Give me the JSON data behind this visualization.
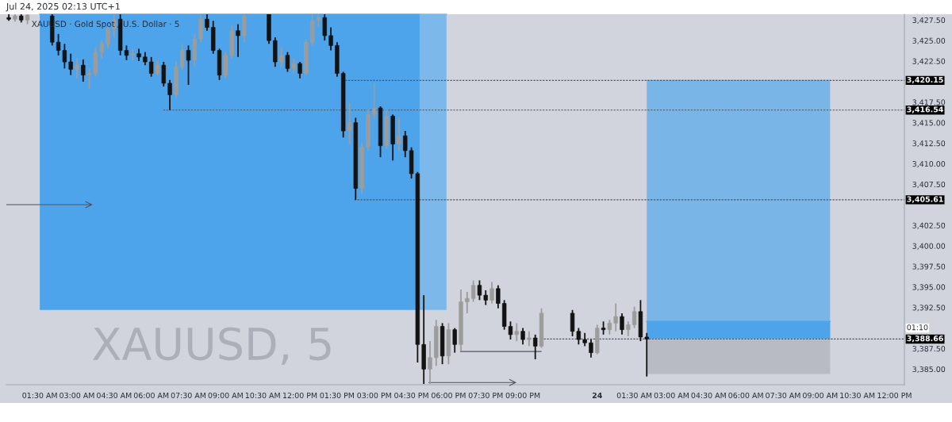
{
  "chart_data": {
    "type": "candlestick",
    "title": "XAUUSD · Gold Spot / U.S. Dollar · 5",
    "subtitle": "XAUUSD, 5",
    "annotations": [
      "Jul 24, 2025 02:13 UTC+1",
      "01:10"
    ],
    "x": [
      "2025-07-23T00:15",
      "2025-07-23T00:30",
      "2025-07-23T00:45",
      "2025-07-23T01:00",
      "2025-07-23T02:00",
      "2025-07-23T02:15",
      "2025-07-23T02:30",
      "2025-07-23T02:45",
      "2025-07-23T03:00",
      "2025-07-23T03:15",
      "2025-07-23T03:30",
      "2025-07-23T03:45",
      "2025-07-23T04:00",
      "2025-07-23T04:15",
      "2025-07-23T04:30",
      "2025-07-23T04:45",
      "2025-07-23T05:00",
      "2025-07-23T05:15",
      "2025-07-23T05:30",
      "2025-07-23T05:45",
      "2025-07-23T06:00",
      "2025-07-23T06:15",
      "2025-07-23T06:30",
      "2025-07-23T06:45",
      "2025-07-23T07:00",
      "2025-07-23T07:15",
      "2025-07-23T07:30",
      "2025-07-23T07:45",
      "2025-07-23T08:00",
      "2025-07-23T08:15",
      "2025-07-23T08:30",
      "2025-07-23T08:45",
      "2025-07-23T09:00",
      "2025-07-23T09:15",
      "2025-07-23T09:30",
      "2025-07-23T09:45",
      "2025-07-23T10:45",
      "2025-07-23T11:00",
      "2025-07-23T11:15",
      "2025-07-23T11:30",
      "2025-07-23T11:45",
      "2025-07-23T12:00",
      "2025-07-23T12:15",
      "2025-07-23T12:30",
      "2025-07-23T12:45",
      "2025-07-23T13:00",
      "2025-07-23T13:15",
      "2025-07-23T13:30",
      "2025-07-23T13:45",
      "2025-07-23T14:00",
      "2025-07-23T14:15",
      "2025-07-23T14:30",
      "2025-07-23T14:45",
      "2025-07-23T15:00",
      "2025-07-23T15:15",
      "2025-07-23T15:30",
      "2025-07-23T15:45",
      "2025-07-23T16:00",
      "2025-07-23T16:15",
      "2025-07-23T16:30",
      "2025-07-23T16:45",
      "2025-07-23T17:00",
      "2025-07-23T17:15",
      "2025-07-23T17:30",
      "2025-07-23T17:45",
      "2025-07-23T18:00",
      "2025-07-23T18:15",
      "2025-07-23T18:30",
      "2025-07-23T18:45",
      "2025-07-23T19:00",
      "2025-07-23T19:15",
      "2025-07-23T19:30",
      "2025-07-23T19:45",
      "2025-07-23T20:00",
      "2025-07-23T20:15",
      "2025-07-23T20:30",
      "2025-07-23T20:45",
      "2025-07-23T21:00",
      "2025-07-23T21:15",
      "2025-07-23T21:30",
      "2025-07-23T21:45",
      "2025-07-23T23:00",
      "2025-07-23T23:15",
      "2025-07-23T23:30",
      "2025-07-23T23:45",
      "2025-07-24T00:00",
      "2025-07-24T00:15",
      "2025-07-24T00:30",
      "2025-07-24T00:45",
      "2025-07-24T01:00",
      "2025-07-24T01:15",
      "2025-07-24T01:30",
      "2025-07-24T01:45",
      "2025-07-24T02:00"
    ],
    "ohlc": [
      [
        3427.8,
        3428.2,
        3427.4,
        3427.6
      ],
      [
        3427.6,
        3428.2,
        3427.3,
        3428.0
      ],
      [
        3428.0,
        3428.2,
        3427.2,
        3427.5
      ],
      [
        3427.5,
        3428.2,
        3427.0,
        3428.1
      ],
      [
        3428.0,
        3428.2,
        3424.4,
        3424.8
      ],
      [
        3424.8,
        3425.8,
        3423.2,
        3423.8
      ],
      [
        3423.8,
        3424.6,
        3421.6,
        3422.4
      ],
      [
        3422.4,
        3423.4,
        3420.8,
        3421.5
      ],
      [
        3421.5,
        3422.9,
        3420.4,
        3422.0
      ],
      [
        3422.0,
        3422.7,
        3420.0,
        3420.8
      ],
      [
        3420.8,
        3421.6,
        3419.1,
        3421.0
      ],
      [
        3421.0,
        3424.2,
        3420.6,
        3423.6
      ],
      [
        3423.6,
        3425.0,
        3422.8,
        3424.6
      ],
      [
        3424.6,
        3426.8,
        3424.0,
        3426.4
      ],
      [
        3426.4,
        3428.2,
        3425.4,
        3427.6
      ],
      [
        3427.6,
        3428.2,
        3423.2,
        3423.8
      ],
      [
        3423.8,
        3424.4,
        3422.6,
        3423.2
      ],
      [
        3423.2,
        3424.0,
        3422.6,
        3423.4
      ],
      [
        3423.4,
        3424.0,
        3422.5,
        3423.0
      ],
      [
        3423.0,
        3423.6,
        3422.0,
        3422.4
      ],
      [
        3422.4,
        3423.0,
        3420.6,
        3421.0
      ],
      [
        3421.0,
        3422.6,
        3420.8,
        3422.0
      ],
      [
        3422.0,
        3422.4,
        3419.4,
        3419.8
      ],
      [
        3419.8,
        3420.2,
        3416.54,
        3418.4
      ],
      [
        3418.4,
        3422.4,
        3418.0,
        3421.8
      ],
      [
        3421.8,
        3424.6,
        3421.4,
        3423.8
      ],
      [
        3423.8,
        3424.4,
        3419.6,
        3422.6
      ],
      [
        3422.6,
        3425.8,
        3421.8,
        3425.2
      ],
      [
        3425.2,
        3428.2,
        3424.8,
        3427.6
      ],
      [
        3427.6,
        3428.2,
        3426.2,
        3426.6
      ],
      [
        3426.6,
        3427.4,
        3423.4,
        3423.8
      ],
      [
        3423.8,
        3424.0,
        3420.2,
        3420.8
      ],
      [
        3420.8,
        3423.6,
        3420.4,
        3423.2
      ],
      [
        3423.2,
        3426.8,
        3422.8,
        3426.2
      ],
      [
        3426.2,
        3427.0,
        3423.0,
        3425.6
      ],
      [
        3425.6,
        3428.2,
        3424.8,
        3428.0
      ],
      [
        3428.2,
        3428.2,
        3424.6,
        3425.0
      ],
      [
        3425.0,
        3425.4,
        3421.8,
        3422.4
      ],
      [
        3422.4,
        3424.2,
        3421.8,
        3423.2
      ],
      [
        3423.2,
        3423.6,
        3421.2,
        3421.6
      ],
      [
        3421.6,
        3422.8,
        3421.0,
        3422.2
      ],
      [
        3422.2,
        3422.4,
        3420.4,
        3421.0
      ],
      [
        3421.0,
        3425.2,
        3420.8,
        3424.8
      ],
      [
        3424.8,
        3428.2,
        3424.4,
        3427.4
      ],
      [
        3427.4,
        3428.2,
        3426.6,
        3427.8
      ],
      [
        3427.8,
        3428.2,
        3425.0,
        3425.6
      ],
      [
        3425.6,
        3426.6,
        3423.8,
        3424.4
      ],
      [
        3424.4,
        3424.8,
        3420.6,
        3421.0
      ],
      [
        3421.0,
        3421.2,
        3413.2,
        3414.0
      ],
      [
        3414.0,
        3417.4,
        3412.4,
        3415.0
      ],
      [
        3415.0,
        3415.6,
        3405.61,
        3407.0
      ],
      [
        3407.0,
        3412.6,
        3406.4,
        3412.0
      ],
      [
        3412.0,
        3416.6,
        3411.6,
        3416.0
      ],
      [
        3416.0,
        3419.8,
        3415.4,
        3416.8
      ],
      [
        3416.8,
        3417.0,
        3410.8,
        3412.2
      ],
      [
        3412.2,
        3416.6,
        3411.8,
        3415.8
      ],
      [
        3415.8,
        3416.0,
        3410.4,
        3412.4
      ],
      [
        3412.4,
        3415.7,
        3411.6,
        3413.4
      ],
      [
        3413.4,
        3414.0,
        3410.8,
        3411.6
      ],
      [
        3411.6,
        3412.0,
        3408.2,
        3408.8
      ],
      [
        3408.8,
        3409.0,
        3385.8,
        3388.0
      ],
      [
        3388.0,
        3394.0,
        3383.2,
        3385.0
      ],
      [
        3385.0,
        3388.4,
        3383.2,
        3386.4
      ],
      [
        3386.4,
        3391.0,
        3385.4,
        3390.2
      ],
      [
        3390.2,
        3390.6,
        3385.6,
        3386.6
      ],
      [
        3386.6,
        3390.6,
        3385.6,
        3389.8
      ],
      [
        3389.8,
        3390.0,
        3387.0,
        3388.0
      ],
      [
        3388.0,
        3394.7,
        3387.2,
        3393.2
      ],
      [
        3393.2,
        3394.4,
        3391.8,
        3393.6
      ],
      [
        3393.6,
        3395.8,
        3393.2,
        3395.2
      ],
      [
        3395.2,
        3395.8,
        3393.4,
        3394.0
      ],
      [
        3394.0,
        3394.6,
        3392.8,
        3393.4
      ],
      [
        3393.4,
        3395.6,
        3393.0,
        3394.8
      ],
      [
        3394.8,
        3395.2,
        3392.4,
        3393.0
      ],
      [
        3393.0,
        3393.4,
        3389.8,
        3390.2
      ],
      [
        3390.2,
        3390.8,
        3388.6,
        3389.2
      ],
      [
        3389.2,
        3390.6,
        3388.4,
        3389.6
      ],
      [
        3389.6,
        3390.0,
        3388.0,
        3388.6
      ],
      [
        3388.6,
        3389.6,
        3387.8,
        3388.8
      ],
      [
        3388.8,
        3389.2,
        3386.2,
        3387.8
      ],
      [
        3387.8,
        3392.4,
        3387.6,
        3391.8
      ],
      [
        3391.8,
        3392.2,
        3389.0,
        3389.6
      ],
      [
        3389.6,
        3390.0,
        3388.0,
        3388.6
      ],
      [
        3388.6,
        3389.4,
        3387.8,
        3388.2
      ],
      [
        3388.2,
        3388.6,
        3386.4,
        3387.0
      ],
      [
        3387.0,
        3390.4,
        3386.8,
        3390.0
      ],
      [
        3390.0,
        3390.8,
        3389.2,
        3389.8
      ],
      [
        3389.8,
        3391.0,
        3389.2,
        3390.6
      ],
      [
        3390.6,
        3393.0,
        3389.6,
        3391.4
      ],
      [
        3391.4,
        3391.8,
        3389.2,
        3389.8
      ],
      [
        3389.8,
        3390.8,
        3389.0,
        3390.4
      ],
      [
        3390.4,
        3392.6,
        3390.0,
        3392.0
      ],
      [
        3392.0,
        3393.4,
        3388.4,
        3388.9
      ],
      [
        3388.9,
        3389.4,
        3384.1,
        3388.66
      ]
    ],
    "colors": [
      "#131313",
      "#9c9c9c",
      "#131313",
      "#9c9c9c",
      "#131313",
      "#131313",
      "#131313",
      "#131313",
      "#9c9c9c",
      "#131313",
      "#9c9c9c",
      "#9c9c9c",
      "#9c9c9c",
      "#9c9c9c",
      "#9c9c9c",
      "#131313",
      "#131313",
      "#9c9c9c",
      "#131313",
      "#131313",
      "#131313",
      "#9c9c9c",
      "#131313",
      "#131313",
      "#9c9c9c",
      "#9c9c9c",
      "#131313",
      "#9c9c9c",
      "#9c9c9c",
      "#131313",
      "#131313",
      "#131313",
      "#9c9c9c",
      "#9c9c9c",
      "#131313",
      "#9c9c9c",
      "#131313",
      "#131313",
      "#9c9c9c",
      "#131313",
      "#9c9c9c",
      "#131313",
      "#9c9c9c",
      "#9c9c9c",
      "#9c9c9c",
      "#131313",
      "#131313",
      "#131313",
      "#131313",
      "#9c9c9c",
      "#131313",
      "#9c9c9c",
      "#9c9c9c",
      "#9c9c9c",
      "#131313",
      "#9c9c9c",
      "#131313",
      "#9c9c9c",
      "#131313",
      "#131313",
      "#131313",
      "#131313",
      "#9c9c9c",
      "#9c9c9c",
      "#131313",
      "#9c9c9c",
      "#131313",
      "#9c9c9c",
      "#9c9c9c",
      "#9c9c9c",
      "#131313",
      "#131313",
      "#9c9c9c",
      "#131313",
      "#131313",
      "#131313",
      "#9c9c9c",
      "#131313",
      "#9c9c9c",
      "#131313",
      "#9c9c9c",
      "#131313",
      "#131313",
      "#131313",
      "#131313",
      "#9c9c9c",
      "#131313",
      "#9c9c9c",
      "#9c9c9c",
      "#131313",
      "#9c9c9c",
      "#9c9c9c",
      "#131313",
      "#131313"
    ],
    "series": [
      {
        "type": "line",
        "x": [
          "2025-07-23T01:30",
          "2025-07-23T16:50"
        ],
        "values": [
          3428.2,
          3428.2
        ],
        "lower": [
          3392.2,
          3392.2
        ],
        "upper": [
          3428.2,
          3428.2
        ],
        "color": "#4ea4ea"
      },
      {
        "type": "line",
        "x": [
          "2025-07-23T16:50",
          "2025-07-23T17:55"
        ],
        "values": [
          3428.2,
          3428.2
        ],
        "lower": [
          3392.2,
          3392.2
        ],
        "upper": [
          3428.2,
          3428.2
        ],
        "color": "#7db8ea"
      },
      {
        "type": "line",
        "x": [
          "2025-07-24T02:00",
          "2025-07-24T09:24"
        ],
        "values": [
          3420.15,
          3420.15
        ],
        "lower": [
          3388.66,
          3388.66
        ],
        "upper": [
          3420.15,
          3420.15
        ],
        "color": "#7ab5e7"
      },
      {
        "type": "line",
        "x": [
          "2025-07-24T02:00",
          "2025-07-24T09:24"
        ],
        "values": [
          3390.8,
          3390.8
        ],
        "lower": [
          3388.66,
          3388.66
        ],
        "upper": [
          3390.8,
          3390.8
        ],
        "color": "#4ea4ea"
      },
      {
        "type": "line",
        "x": [
          "2025-07-24T02:00",
          "2025-07-24T09:24"
        ],
        "values": [
          3388.66,
          3388.66
        ],
        "lower": [
          3384.4,
          3384.4
        ],
        "upper": [
          3388.66,
          3388.66
        ],
        "color": "#b8bbc3"
      },
      {
        "type": "line",
        "x": [
          "2025-07-23T13:50",
          "2025-07-24T12:24"
        ],
        "values": [
          3420.15,
          3420.15
        ],
        "value_labels": [
          null,
          "3,420.15"
        ],
        "color": "#50535e",
        "line_style": "dotted"
      },
      {
        "type": "line",
        "x": [
          "2025-07-23T06:29",
          "2025-07-24T12:24"
        ],
        "values": [
          3416.54,
          3416.54
        ],
        "value_labels": [
          null,
          "3,416.54"
        ],
        "color": "#50535e",
        "line_style": "dotted"
      },
      {
        "type": "line",
        "x": [
          "2025-07-23T14:12",
          "2025-07-24T12:24"
        ],
        "values": [
          3405.61,
          3405.61
        ],
        "value_labels": [
          null,
          "3,405.61"
        ],
        "color": "#50535e",
        "line_style": "dotted"
      },
      {
        "type": "line",
        "x": [
          "2025-07-23T21:51",
          "2025-07-24T12:24"
        ],
        "values": [
          3388.66,
          3388.66
        ],
        "value_labels": [
          null,
          "3,388.66"
        ],
        "color": "#50535e",
        "line_style": "dotted"
      },
      {
        "type": "line",
        "x": [
          "2025-07-23T18:29",
          "2025-07-23T21:44"
        ],
        "values": [
          3387.14,
          3387.14
        ],
        "color": "#50535e",
        "line_style": "solid"
      }
    ],
    "xlim": [
      "2025-07-23T00:09",
      "2025-07-24T12:24"
    ],
    "ylim": [
      3383.1,
      3428.2
    ],
    "xticks": [
      {
        "value": "2025-07-23T01:30",
        "label": "01:30 AM"
      },
      {
        "value": "2025-07-23T03:00",
        "label": "03:00 AM"
      },
      {
        "value": "2025-07-23T04:30",
        "label": "04:30 AM"
      },
      {
        "value": "2025-07-23T06:00",
        "label": "06:00 AM"
      },
      {
        "value": "2025-07-23T07:30",
        "label": "07:30 AM"
      },
      {
        "value": "2025-07-23T09:00",
        "label": "09:00 AM"
      },
      {
        "value": "2025-07-23T10:30",
        "label": "10:30 AM"
      },
      {
        "value": "2025-07-23T12:00",
        "label": "12:00 PM"
      },
      {
        "value": "2025-07-23T13:30",
        "label": "01:30 PM"
      },
      {
        "value": "2025-07-23T15:00",
        "label": "03:00 PM"
      },
      {
        "value": "2025-07-23T16:30",
        "label": "04:30 PM"
      },
      {
        "value": "2025-07-23T18:00",
        "label": "06:00 PM"
      },
      {
        "value": "2025-07-23T19:30",
        "label": "07:30 PM"
      },
      {
        "value": "2025-07-23T21:00",
        "label": "09:00 PM"
      },
      {
        "value": "2025-07-24T00:00",
        "label": "24"
      },
      {
        "value": "2025-07-24T01:30",
        "label": "01:30 AM"
      },
      {
        "value": "2025-07-24T03:00",
        "label": "03:00 AM"
      },
      {
        "value": "2025-07-24T04:30",
        "label": "04:30 AM"
      },
      {
        "value": "2025-07-24T06:00",
        "label": "06:00 AM"
      },
      {
        "value": "2025-07-24T07:30",
        "label": "07:30 AM"
      },
      {
        "value": "2025-07-24T09:00",
        "label": "09:00 AM"
      },
      {
        "value": "2025-07-24T10:30",
        "label": "10:30 AM"
      },
      {
        "value": "2025-07-24T12:00",
        "label": "12:00 PM"
      }
    ],
    "yticks": [
      {
        "value": 3385,
        "label": "3,385.00"
      },
      {
        "value": 3387.5,
        "label": "3,387.50"
      },
      {
        "value": 3392.5,
        "label": "3,392.50"
      },
      {
        "value": 3395,
        "label": "3,395.00"
      },
      {
        "value": 3397.5,
        "label": "3,397.50"
      },
      {
        "value": 3400,
        "label": "3,400.00"
      },
      {
        "value": 3402.5,
        "label": "3,402.50"
      },
      {
        "value": 3407.5,
        "label": "3,407.50"
      },
      {
        "value": 3410,
        "label": "3,410.00"
      },
      {
        "value": 3412.5,
        "label": "3,412.50"
      },
      {
        "value": 3415,
        "label": "3,415.00"
      },
      {
        "value": 3417.5,
        "label": "3,417.50"
      },
      {
        "value": 3422.5,
        "label": "3,422.50"
      },
      {
        "value": 3425,
        "label": "3,425.00"
      },
      {
        "value": 3427.5,
        "label": "3,427.50"
      }
    ]
  }
}
